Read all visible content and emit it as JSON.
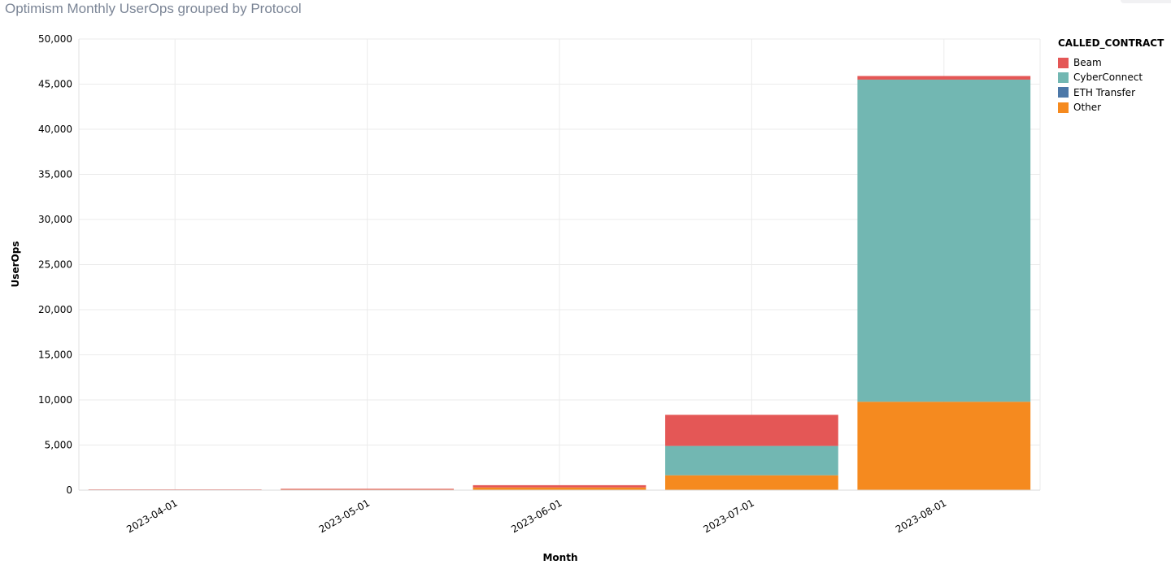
{
  "title": "Optimism Monthly UserOps grouped by Protocol",
  "chart_data": {
    "type": "bar",
    "stacked": true,
    "title": "Optimism Monthly UserOps grouped by Protocol",
    "xlabel": "Month",
    "ylabel": "UserOps",
    "categories": [
      "2023-04-01",
      "2023-05-01",
      "2023-06-01",
      "2023-07-01",
      "2023-08-01"
    ],
    "ylim": [
      0,
      50000
    ],
    "yticks": [
      0,
      5000,
      10000,
      15000,
      20000,
      25000,
      30000,
      35000,
      40000,
      45000,
      50000
    ],
    "ytick_labels": [
      "0",
      "5,000",
      "10,000",
      "15,000",
      "20,000",
      "25,000",
      "30,000",
      "35,000",
      "40,000",
      "45,000",
      "50,000"
    ],
    "grid": true,
    "legend_title": "CALLED_CONTRACT",
    "legend_position": "right",
    "series": [
      {
        "name": "Other",
        "color": "#f58a1f",
        "values": [
          60,
          120,
          300,
          1650,
          9800
        ]
      },
      {
        "name": "ETH Transfer",
        "color": "#4c78a8",
        "values": [
          0,
          0,
          0,
          0,
          0
        ]
      },
      {
        "name": "CyberConnect",
        "color": "#72b7b2",
        "values": [
          0,
          0,
          0,
          3250,
          35700
        ]
      },
      {
        "name": "Beam",
        "color": "#e45756",
        "values": [
          20,
          30,
          250,
          3450,
          400
        ]
      }
    ],
    "legend_order": [
      "Beam",
      "CyberConnect",
      "ETH Transfer",
      "Other"
    ]
  }
}
